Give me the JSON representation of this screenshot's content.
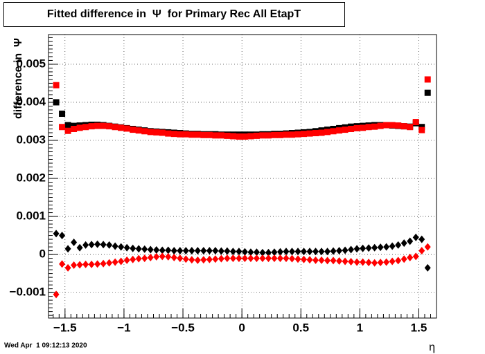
{
  "chart_data": {
    "type": "scatter",
    "title": "Fitted difference in  Ψ  for Primary Rec All EtapT",
    "y_label": "difference in  Ψ",
    "x_label": "η",
    "timestamp": "Wed Apr  1 09:12:13 2020",
    "x": [
      -1.575,
      -1.525,
      -1.475,
      -1.425,
      -1.375,
      -1.325,
      -1.275,
      -1.225,
      -1.175,
      -1.125,
      -1.075,
      -1.025,
      -0.975,
      -0.925,
      -0.875,
      -0.825,
      -0.775,
      -0.725,
      -0.675,
      -0.625,
      -0.575,
      -0.525,
      -0.475,
      -0.425,
      -0.375,
      -0.325,
      -0.275,
      -0.225,
      -0.175,
      -0.125,
      -0.075,
      -0.025,
      0.025,
      0.075,
      0.125,
      0.175,
      0.225,
      0.275,
      0.325,
      0.375,
      0.425,
      0.475,
      0.525,
      0.575,
      0.625,
      0.675,
      0.725,
      0.775,
      0.825,
      0.875,
      0.925,
      0.975,
      1.025,
      1.075,
      1.125,
      1.175,
      1.225,
      1.275,
      1.325,
      1.375,
      1.425,
      1.475,
      1.525,
      1.575
    ],
    "series": [
      {
        "color": "#000000",
        "marker": "square",
        "values": [
          0.004,
          0.0037,
          0.0034,
          0.00338,
          0.00339,
          0.0034,
          0.00341,
          0.00341,
          0.0034,
          0.00338,
          0.00336,
          0.00334,
          0.00332,
          0.0033,
          0.00328,
          0.00326,
          0.00324,
          0.00323,
          0.00322,
          0.00321,
          0.0032,
          0.00319,
          0.00318,
          0.00317,
          0.00317,
          0.00316,
          0.00316,
          0.00316,
          0.00315,
          0.00315,
          0.00315,
          0.00315,
          0.00315,
          0.00315,
          0.00315,
          0.00316,
          0.00316,
          0.00317,
          0.00317,
          0.00318,
          0.00319,
          0.0032,
          0.00321,
          0.00322,
          0.00324,
          0.00326,
          0.00328,
          0.0033,
          0.00332,
          0.00334,
          0.00336,
          0.00337,
          0.00338,
          0.00339,
          0.0034,
          0.0034,
          0.0034,
          0.00339,
          0.00338,
          0.00337,
          0.00336,
          0.00345,
          0.00335,
          0.00425
        ]
      },
      {
        "color": "#ff0000",
        "marker": "square",
        "values": [
          0.00445,
          0.00335,
          0.00325,
          0.0033,
          0.00333,
          0.00335,
          0.00337,
          0.00338,
          0.00338,
          0.00337,
          0.00335,
          0.00333,
          0.00331,
          0.00328,
          0.00326,
          0.00324,
          0.00322,
          0.00321,
          0.0032,
          0.00318,
          0.00317,
          0.00316,
          0.00316,
          0.00315,
          0.00315,
          0.00314,
          0.00314,
          0.00313,
          0.00313,
          0.00312,
          0.00311,
          0.0031,
          0.0031,
          0.00311,
          0.00312,
          0.00313,
          0.00313,
          0.00314,
          0.00314,
          0.00315,
          0.00315,
          0.00316,
          0.00317,
          0.00318,
          0.00319,
          0.0032,
          0.00322,
          0.00324,
          0.00326,
          0.00328,
          0.0033,
          0.00332,
          0.00333,
          0.00335,
          0.00336,
          0.00338,
          0.0034,
          0.0034,
          0.00339,
          0.00337,
          0.00335,
          0.00348,
          0.00327,
          0.0046
        ]
      },
      {
        "color": "#000000",
        "marker": "diamond",
        "values": [
          0.00055,
          0.0005,
          0.00015,
          0.00032,
          0.00018,
          0.00025,
          0.00026,
          0.00027,
          0.00026,
          0.00025,
          0.00022,
          0.0002,
          0.00018,
          0.00016,
          0.00015,
          0.00014,
          0.00013,
          0.00012,
          0.00011,
          0.00011,
          0.0001,
          0.0001,
          0.0001,
          0.0001,
          0.0001,
          0.0001,
          0.0001,
          0.0001,
          9e-05,
          9e-05,
          8e-05,
          8e-05,
          7e-05,
          6e-05,
          6e-05,
          5e-05,
          5e-05,
          6e-05,
          7e-05,
          8e-05,
          8e-05,
          8e-05,
          8e-05,
          8e-05,
          8e-05,
          8e-05,
          8e-05,
          9e-05,
          0.0001,
          0.00011,
          0.00013,
          0.00015,
          0.00016,
          0.00017,
          0.00018,
          0.00019,
          0.0002,
          0.00022,
          0.00025,
          0.0003,
          0.00035,
          0.00045,
          0.0004,
          -0.00035
        ]
      },
      {
        "color": "#ff0000",
        "marker": "diamond",
        "values": [
          -0.00105,
          -0.00025,
          -0.00035,
          -0.00028,
          -0.00027,
          -0.00026,
          -0.00026,
          -0.00025,
          -0.00024,
          -0.00022,
          -0.0002,
          -0.00018,
          -0.00015,
          -0.00013,
          -0.00011,
          -0.0001,
          -8e-05,
          -6e-05,
          -5e-05,
          -6e-05,
          -8e-05,
          -0.0001,
          -0.00012,
          -0.00014,
          -0.00015,
          -0.00014,
          -0.00013,
          -0.00012,
          -0.00011,
          -0.0001,
          -0.0001,
          -0.0001,
          -0.0001,
          -0.0001,
          -0.0001,
          -0.0001,
          -0.0001,
          -0.0001,
          -0.0001,
          -0.0001,
          -0.00011,
          -0.00012,
          -0.00013,
          -0.00014,
          -0.00015,
          -0.00015,
          -0.00016,
          -0.00016,
          -0.00017,
          -0.00018,
          -0.00019,
          -0.0002,
          -0.0002,
          -0.00021,
          -0.00022,
          -0.00021,
          -0.0002,
          -0.00018,
          -0.00016,
          -0.00012,
          -8e-05,
          -5e-05,
          0.0001,
          0.0002
        ]
      }
    ],
    "xlim": [
      -1.64,
      1.65
    ],
    "ylim": [
      -0.00167,
      0.00578
    ],
    "xticks": [
      {
        "value": -1.5,
        "label": "−1.5"
      },
      {
        "value": -1,
        "label": "−1"
      },
      {
        "value": -0.5,
        "label": "−0.5"
      },
      0,
      0.5,
      1,
      1.5
    ],
    "yticks": [
      {
        "value": -0.001,
        "label": "−0.001"
      },
      0,
      0.001,
      0.002,
      0.003,
      0.004,
      0.005
    ],
    "grid": true
  }
}
